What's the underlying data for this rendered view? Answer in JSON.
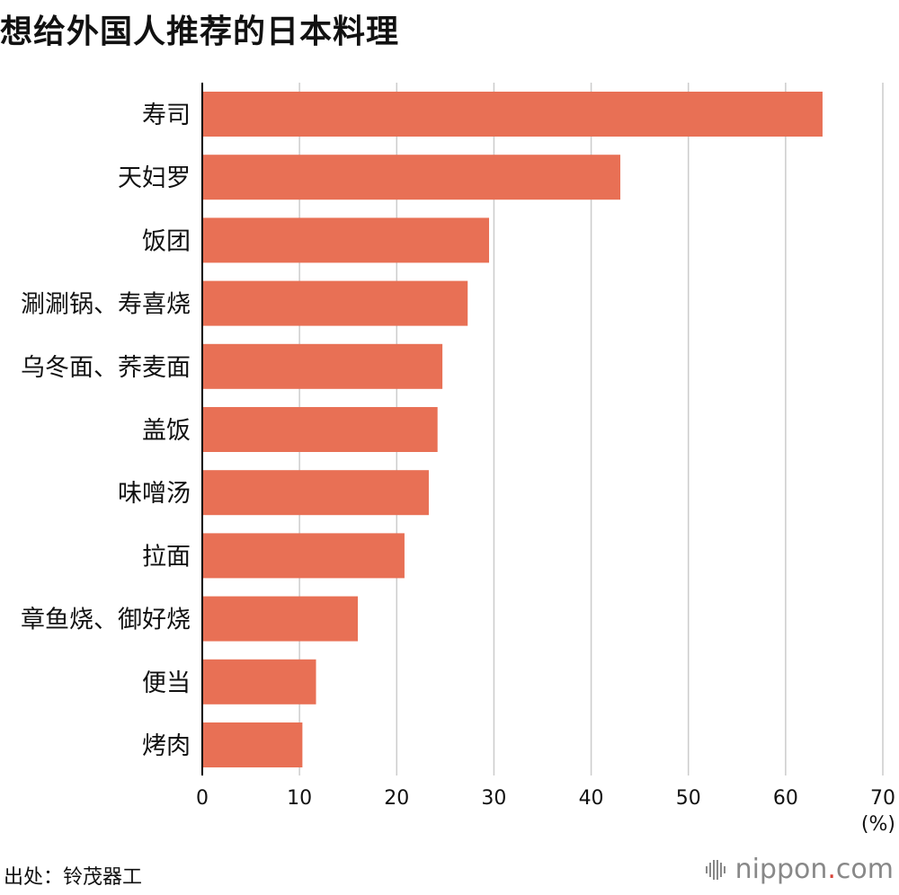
{
  "title": "想给外国人推荐的日本料理",
  "source": "出处：铃茂器工",
  "logo": {
    "name": "nippon",
    "dot": ".",
    "suffix": "com",
    "icon": "nippon-logo-icon"
  },
  "colors": {
    "bar": "#e87055",
    "grid": "#cccccc",
    "axis": "#000000"
  },
  "chart_data": {
    "type": "bar",
    "orientation": "horizontal",
    "categories": [
      "寿司",
      "天妇罗",
      "饭团",
      "涮涮锅、寿喜烧",
      "乌冬面、荞麦面",
      "盖饭",
      "味噌汤",
      "拉面",
      "章鱼烧、御好烧",
      "便当",
      "烤肉"
    ],
    "values": [
      63.8,
      43.0,
      29.5,
      27.3,
      24.7,
      24.2,
      23.3,
      20.8,
      16.0,
      11.7,
      10.3
    ],
    "xlim": [
      0,
      70
    ],
    "xticks": [
      0,
      10,
      20,
      30,
      40,
      50,
      60,
      70
    ],
    "unit": "(%)",
    "grid": true
  }
}
